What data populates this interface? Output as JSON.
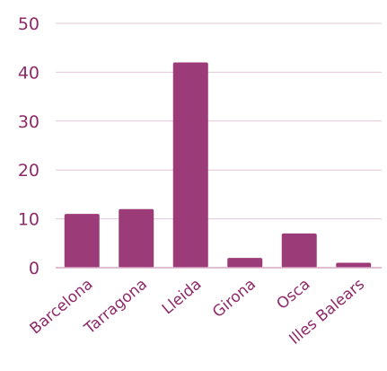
{
  "chart_data": {
    "type": "bar",
    "categories": [
      "Barcelona",
      "Tarragona",
      "Lleida",
      "Girona",
      "Osca",
      "Illes Balears"
    ],
    "values": [
      11,
      12,
      42,
      2,
      7,
      1
    ],
    "ylim": [
      0,
      50
    ],
    "yticks": [
      0,
      10,
      20,
      30,
      40,
      50
    ],
    "title": "",
    "xlabel": "",
    "ylabel": "",
    "grid": true,
    "legend": "none",
    "colors": {
      "bar": "#9b3b78",
      "text": "#8e2a6a",
      "grid": "#e3c7d7",
      "axis": "#d9a9c6"
    }
  }
}
